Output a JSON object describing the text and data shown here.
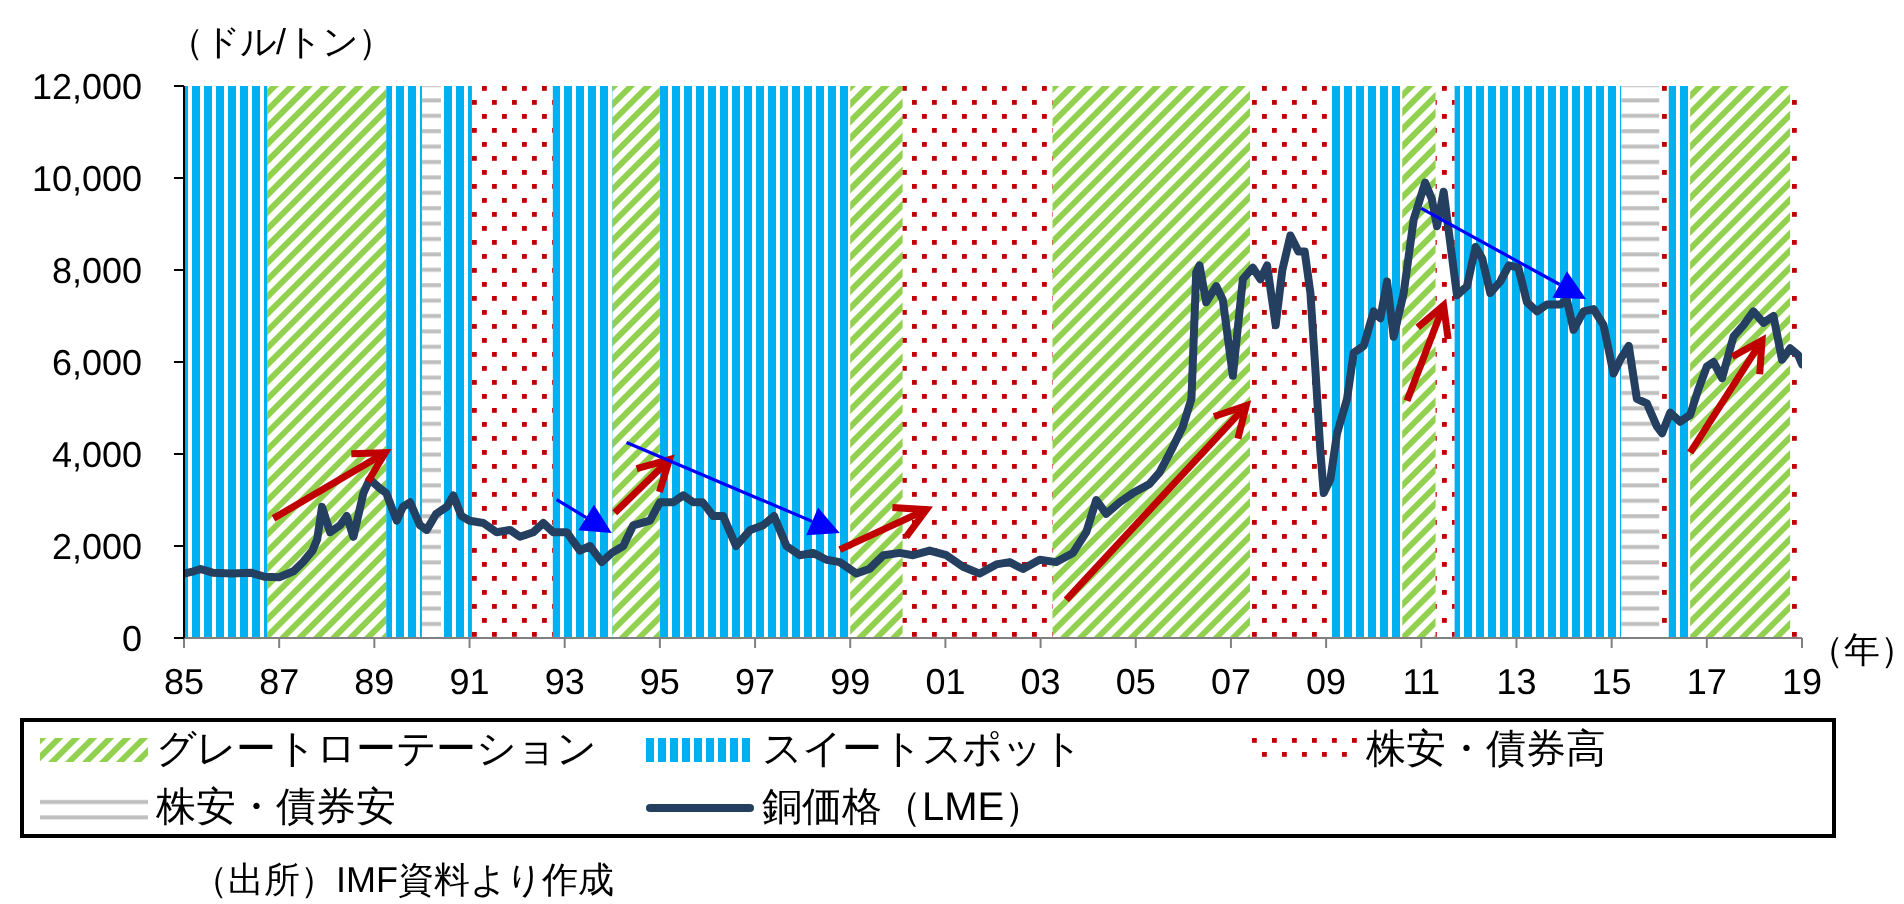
{
  "chart_data": {
    "type": "line",
    "ylabel": "（ドル/トン）",
    "xlabel": "（年）",
    "x": [
      1985.0,
      1985.2,
      1985.35,
      1985.6,
      1986.0,
      1986.4,
      1986.7,
      1987.0,
      1987.3,
      1987.5,
      1987.7,
      1987.8,
      1987.9,
      1988.07,
      1988.28,
      1988.42,
      1988.56,
      1988.77,
      1988.9,
      1989.12,
      1989.25,
      1989.47,
      1989.6,
      1989.75,
      1989.96,
      1990.1,
      1990.3,
      1990.52,
      1990.66,
      1990.83,
      1991.0,
      1991.29,
      1991.57,
      1991.85,
      1992.06,
      1992.34,
      1992.55,
      1992.76,
      1993.04,
      1993.32,
      1993.53,
      1993.78,
      1993.99,
      1994.23,
      1994.44,
      1994.79,
      1995.0,
      1995.28,
      1995.49,
      1995.7,
      1995.9,
      1996.12,
      1996.33,
      1996.6,
      1996.9,
      1997.17,
      1997.4,
      1997.66,
      1997.94,
      1998.22,
      1998.5,
      1998.78,
      1999.13,
      1999.4,
      1999.7,
      2000.04,
      2000.32,
      2000.67,
      2001.02,
      2001.37,
      2001.72,
      2002.07,
      2002.35,
      2002.63,
      2002.98,
      2003.33,
      2003.68,
      2003.96,
      2004.17,
      2004.38,
      2004.66,
      2004.94,
      2005.29,
      2005.5,
      2005.78,
      2005.99,
      2006.17,
      2006.27,
      2006.34,
      2006.48,
      2006.69,
      2006.83,
      2007.04,
      2007.25,
      2007.46,
      2007.62,
      2007.76,
      2007.94,
      2008.08,
      2008.25,
      2008.42,
      2008.55,
      2008.67,
      2008.78,
      2008.88,
      2008.95,
      2009.09,
      2009.23,
      2009.44,
      2009.58,
      2009.79,
      2010.0,
      2010.14,
      2010.28,
      2010.42,
      2010.63,
      2010.84,
      2011.08,
      2011.22,
      2011.33,
      2011.47,
      2011.75,
      2011.96,
      2012.14,
      2012.28,
      2012.45,
      2012.66,
      2012.84,
      2013.04,
      2013.22,
      2013.43,
      2013.64,
      2013.92,
      2014.06,
      2014.2,
      2014.41,
      2014.62,
      2014.83,
      2015.04,
      2015.18,
      2015.36,
      2015.53,
      2015.74,
      2015.95,
      2016.06,
      2016.23,
      2016.44,
      2016.65,
      2016.82,
      2017.0,
      2017.14,
      2017.32,
      2017.56,
      2017.77,
      2017.98,
      2018.19,
      2018.4,
      2018.58,
      2018.75,
      2018.92,
      2019.0
    ],
    "series": [
      {
        "name": "銅価格（LME）",
        "color": "#243f60",
        "values": [
          1400,
          1450,
          1500,
          1420,
          1400,
          1420,
          1330,
          1320,
          1450,
          1650,
          1900,
          2150,
          2850,
          2300,
          2450,
          2650,
          2200,
          3150,
          3450,
          3250,
          3150,
          2550,
          2850,
          2950,
          2450,
          2350,
          2700,
          2850,
          3100,
          2650,
          2550,
          2500,
          2300,
          2350,
          2200,
          2300,
          2500,
          2300,
          2300,
          1900,
          2000,
          1650,
          1850,
          2000,
          2450,
          2550,
          2950,
          2950,
          3100,
          2950,
          2950,
          2650,
          2650,
          2000,
          2350,
          2450,
          2650,
          2000,
          1800,
          1850,
          1700,
          1650,
          1400,
          1500,
          1800,
          1850,
          1800,
          1900,
          1800,
          1550,
          1400,
          1600,
          1650,
          1500,
          1700,
          1650,
          1850,
          2300,
          3000,
          2700,
          2950,
          3150,
          3350,
          3600,
          4150,
          4600,
          5200,
          7950,
          8100,
          7300,
          7650,
          7350,
          5700,
          7800,
          8050,
          7800,
          8100,
          6800,
          8000,
          8750,
          8400,
          8400,
          7500,
          5750,
          4050,
          3150,
          3450,
          4450,
          5200,
          6200,
          6350,
          7100,
          6950,
          7750,
          6550,
          7500,
          9100,
          9900,
          9550,
          8950,
          9700,
          7450,
          7650,
          8500,
          8250,
          7500,
          7750,
          8100,
          8050,
          7300,
          7100,
          7250,
          7250,
          7350,
          6700,
          7100,
          7150,
          6800,
          5750,
          6050,
          6350,
          5200,
          5100,
          4600,
          4450,
          4900,
          4700,
          4850,
          5400,
          5900,
          6000,
          5650,
          6550,
          6800,
          7100,
          6850,
          7000,
          6050,
          6300,
          6150,
          5950
        ]
      }
    ],
    "xlim": [
      1985,
      2019
    ],
    "xticks": [
      {
        "value": 1985,
        "label": "85"
      },
      {
        "value": 1987,
        "label": "87"
      },
      {
        "value": 1989,
        "label": "89"
      },
      {
        "value": 1991,
        "label": "91"
      },
      {
        "value": 1993,
        "label": "93"
      },
      {
        "value": 1995,
        "label": "95"
      },
      {
        "value": 1997,
        "label": "97"
      },
      {
        "value": 1999,
        "label": "99"
      },
      {
        "value": 2001,
        "label": "01"
      },
      {
        "value": 2003,
        "label": "03"
      },
      {
        "value": 2005,
        "label": "05"
      },
      {
        "value": 2007,
        "label": "07"
      },
      {
        "value": 2009,
        "label": "09"
      },
      {
        "value": 2011,
        "label": "11"
      },
      {
        "value": 2013,
        "label": "13"
      },
      {
        "value": 2015,
        "label": "15"
      },
      {
        "value": 2017,
        "label": "17"
      },
      {
        "value": 2019,
        "label": "19"
      }
    ],
    "ylim": [
      0,
      12000
    ],
    "yticks": [
      0,
      {
        "value": 2000,
        "label": "2,000"
      },
      {
        "value": 4000,
        "label": "4,000"
      },
      {
        "value": 6000,
        "label": "6,000"
      },
      {
        "value": 8000,
        "label": "8,000"
      },
      {
        "value": 10000,
        "label": "10,000"
      },
      {
        "value": 12000,
        "label": "12,000"
      }
    ],
    "bands": [
      {
        "axis": "x",
        "from": 1986.75,
        "to": 1989.25,
        "label": "グレートローテーション",
        "color": "#92d050"
      },
      {
        "axis": "x",
        "from": 1994.0,
        "to": 1995.0,
        "color": "#92d050"
      },
      {
        "axis": "x",
        "from": 1999.0,
        "to": 2000.1,
        "color": "#92d050"
      },
      {
        "axis": "x",
        "from": 2003.25,
        "to": 2007.4,
        "color": "#92d050"
      },
      {
        "axis": "x",
        "from": 2010.6,
        "to": 2011.3,
        "color": "#92d050"
      },
      {
        "axis": "x",
        "from": 2016.65,
        "to": 2018.75,
        "color": "#92d050"
      },
      {
        "axis": "x",
        "from": 1985.0,
        "to": 1986.75,
        "label": "スイートスポット",
        "color": "#00b0f0"
      },
      {
        "axis": "x",
        "from": 1989.25,
        "to": 1990.0,
        "color": "#00b0f0"
      },
      {
        "axis": "x",
        "from": 1990.4,
        "to": 1991.05,
        "color": "#00b0f0"
      },
      {
        "axis": "x",
        "from": 1992.75,
        "to": 1994.0,
        "color": "#00b0f0"
      },
      {
        "axis": "x",
        "from": 1995.0,
        "to": 1999.0,
        "color": "#00b0f0"
      },
      {
        "axis": "x",
        "from": 2009.1,
        "to": 2010.6,
        "color": "#00b0f0"
      },
      {
        "axis": "x",
        "from": 2011.7,
        "to": 2015.2,
        "color": "#00b0f0"
      },
      {
        "axis": "x",
        "from": 2016.2,
        "to": 2016.65,
        "color": "#00b0f0"
      },
      {
        "axis": "x",
        "from": 1991.05,
        "to": 1992.75,
        "label": "株安・債券高",
        "color": "#c00000"
      },
      {
        "axis": "x",
        "from": 2000.1,
        "to": 2003.25,
        "color": "#c00000"
      },
      {
        "axis": "x",
        "from": 2007.4,
        "to": 2009.1,
        "color": "#c00000"
      },
      {
        "axis": "x",
        "from": 2011.3,
        "to": 2011.7,
        "color": "#c00000"
      },
      {
        "axis": "x",
        "from": 2016.0,
        "to": 2016.2,
        "color": "#c00000"
      },
      {
        "axis": "x",
        "from": 2018.75,
        "to": 2019.0,
        "color": "#c00000"
      },
      {
        "axis": "x",
        "from": 1990.0,
        "to": 1990.4,
        "label": "株安・債券安",
        "color": "#bfbfbf"
      },
      {
        "axis": "x",
        "from": 2015.2,
        "to": 2016.0,
        "color": "#bfbfbf"
      }
    ],
    "legend": "bottom",
    "annotations": [
      "（出所）IMF資料より作成"
    ]
  }
}
